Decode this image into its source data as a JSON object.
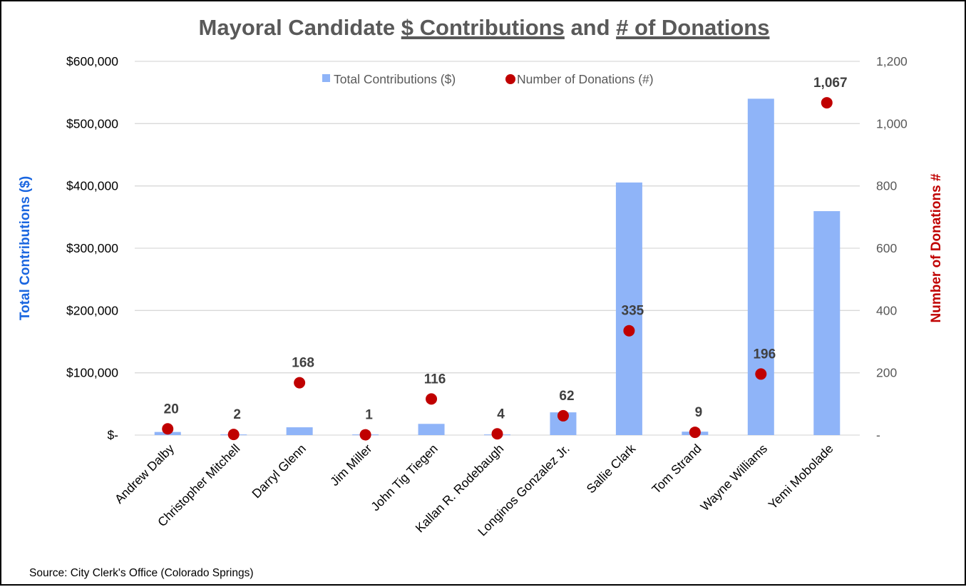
{
  "chart_data": {
    "type": "bar",
    "title": {
      "prefix": "Mayoral Candidate ",
      "part1": "$ Contributions",
      "middle": " and ",
      "part2": "# of Donations"
    },
    "categories": [
      "Andrew Dalby",
      "Christopher Mitchell",
      "Darryl Glenn",
      "Jim Miller",
      "John Tig Tiegen",
      "Kallan R. Rodebaugh",
      "Longinos Gonzalez Jr.",
      "Sallie Clark",
      "Tom Strand",
      "Wayne Williams",
      "Yemi Mobolade"
    ],
    "series": [
      {
        "name": "Total Contributions ($)",
        "type": "bar",
        "axis": "left",
        "color": "#8FB4F8",
        "values": [
          5000,
          1000,
          12500,
          1000,
          18000,
          1000,
          36500,
          405500,
          5500,
          540000,
          359500
        ]
      },
      {
        "name": "Number of Donations (#)",
        "type": "scatter",
        "axis": "right",
        "color": "#C00000",
        "values": [
          20,
          2,
          168,
          1,
          116,
          4,
          62,
          335,
          9,
          196,
          1067
        ],
        "labels": [
          "20",
          "2",
          "168",
          "1",
          "116",
          "4",
          "62",
          "335",
          "9",
          "196",
          "1,067"
        ]
      }
    ],
    "y_left": {
      "label": "Total Contributions ($)",
      "label_color": "#1A66E0",
      "range": [
        0,
        600000
      ],
      "ticks": [
        0,
        100000,
        200000,
        300000,
        400000,
        500000,
        600000
      ],
      "tick_labels": [
        "$-",
        "$100,000",
        "$200,000",
        "$300,000",
        "$400,000",
        "$500,000",
        "$600,000"
      ]
    },
    "y_right": {
      "label": "Number of Donations #",
      "label_color": "#C00000",
      "range": [
        0,
        1200
      ],
      "ticks": [
        0,
        200,
        400,
        600,
        800,
        1000,
        1200
      ],
      "tick_labels": [
        "-",
        "200",
        "400",
        "600",
        "800",
        "1,000",
        "1,200"
      ]
    },
    "xlabel": "",
    "grid": true,
    "legend_position": "top-center",
    "source": "Source: City Clerk's Office (Colorado Springs)"
  }
}
